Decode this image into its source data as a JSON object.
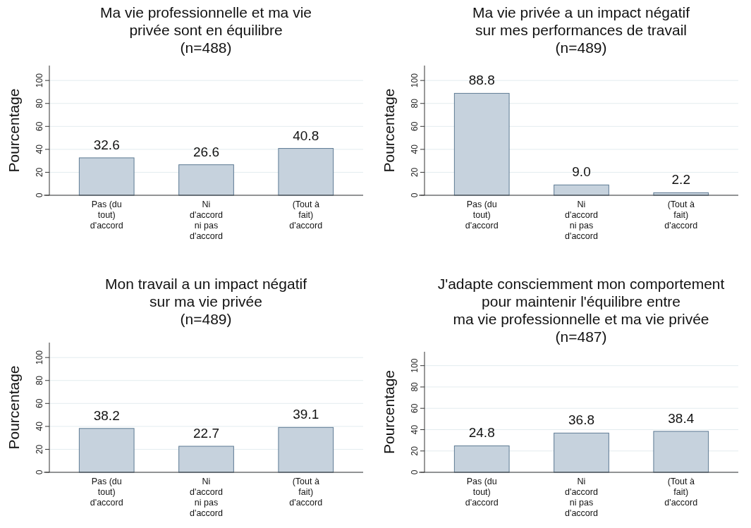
{
  "chart_data": [
    {
      "type": "bar",
      "title": "Ma vie professionnelle et ma vie\nprivée sont en équilibre\n(n=488)",
      "ylabel": "Pourcentage",
      "categories": [
        "Pas (du tout) d'accord",
        "Ni d'accord ni pas d'accord",
        "(Tout à fait) d'accord"
      ],
      "values": [
        32.6,
        26.6,
        40.8
      ],
      "color": "#c6d2dd",
      "ylim": [
        0,
        113
      ],
      "yticks": [
        0,
        20,
        40,
        60,
        80,
        100
      ],
      "grid": "y",
      "data_labels": true
    },
    {
      "type": "bar",
      "title": "Ma vie privée a un impact négatif\nsur mes performances de travail\n(n=489)",
      "ylabel": "Pourcentage",
      "categories": [
        "Pas (du tout) d'accord",
        "Ni d'accord ni pas d'accord",
        "(Tout à fait) d'accord"
      ],
      "values": [
        88.8,
        9.0,
        2.2
      ],
      "value_labels": [
        "88.8",
        "9.0",
        "2.2"
      ],
      "color": "#c6d2dd",
      "ylim": [
        0,
        113
      ],
      "yticks": [
        0,
        20,
        40,
        60,
        80,
        100
      ],
      "grid": "y"
    },
    {
      "type": "bar",
      "title": "Mon travail a un impact négatif\nsur ma vie privée\n(n=489)",
      "ylabel": "Pourcentage",
      "categories": [
        "Pas (du tout) d'accord",
        "Ni d'accord ni pas d'accord",
        "(Tout à fait) d'accord"
      ],
      "values": [
        38.2,
        22.7,
        39.1
      ],
      "color": "#c6d2dd",
      "ylim": [
        0,
        113
      ],
      "yticks": [
        0,
        20,
        40,
        60,
        80,
        100
      ],
      "grid": "y",
      "data_labels": true
    },
    {
      "type": "bar",
      "title": "J'adapte consciemment mon comportement\npour maintenir l'équilibre entre\nma vie professionnelle et ma vie privée\n(n=487)",
      "ylabel": "Pourcentage",
      "categories": [
        "Pas (du tout) d'accord",
        "Ni d'accord ni pas d'accord",
        "(Tout à fait) d'accord"
      ],
      "values": [
        24.8,
        36.8,
        38.4
      ],
      "color": "#c6d2dd",
      "ylim": [
        0,
        113
      ],
      "yticks": [
        0,
        20,
        40,
        60,
        80,
        100
      ],
      "grid": "y",
      "data_labels": true
    }
  ]
}
